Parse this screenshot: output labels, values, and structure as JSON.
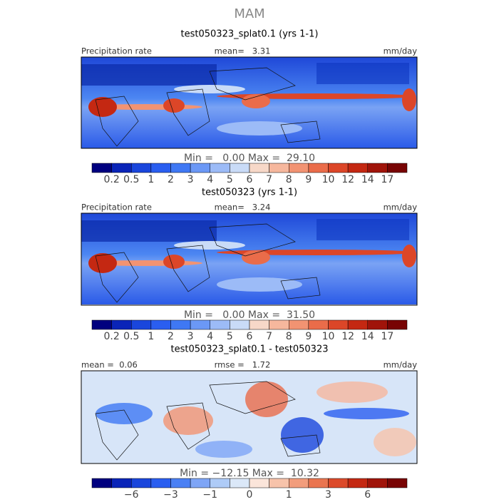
{
  "title": "MAM",
  "panels": [
    {
      "subtitle": "test050323_splat0.1 (yrs 1-1)",
      "left_label": "Precipitation rate",
      "center_label": "mean=   3.31",
      "right_label": "mm/day",
      "range_label": "Min =   0.00 Max =  29.10",
      "colorbar": {
        "colors": [
          "#00007f",
          "#0a24b8",
          "#1a46dc",
          "#2a5ef0",
          "#3f78f4",
          "#6b98f6",
          "#9cbbf7",
          "#c9dbf7",
          "#f7d8c8",
          "#f6b79d",
          "#f29372",
          "#ea6c4a",
          "#dc4628",
          "#c42812",
          "#a0140a",
          "#780404"
        ],
        "labels": [
          "0.2",
          "0.5",
          "1",
          "2",
          "3",
          "4",
          "5",
          "6",
          "7",
          "8",
          "9",
          "10",
          "12",
          "14",
          "17"
        ]
      }
    },
    {
      "subtitle": "test050323 (yrs 1-1)",
      "left_label": "Precipitation rate",
      "center_label": "mean=   3.24",
      "right_label": "mm/day",
      "range_label": "Min =   0.00 Max =  31.50",
      "colorbar": {
        "colors": [
          "#00007f",
          "#0a24b8",
          "#1a46dc",
          "#2a5ef0",
          "#3f78f4",
          "#6b98f6",
          "#9cbbf7",
          "#c9dbf7",
          "#f7d8c8",
          "#f6b79d",
          "#f29372",
          "#ea6c4a",
          "#dc4628",
          "#c42812",
          "#a0140a",
          "#780404"
        ],
        "labels": [
          "0.2",
          "0.5",
          "1",
          "2",
          "3",
          "4",
          "5",
          "6",
          "7",
          "8",
          "9",
          "10",
          "12",
          "14",
          "17"
        ]
      }
    },
    {
      "subtitle": "test050323_splat0.1 - test050323",
      "left_label": "mean =  0.06",
      "center_label": "rmse =   1.72",
      "right_label": "mm/day",
      "range_label": "Min = −12.15 Max =  10.32",
      "colorbar": {
        "colors": [
          "#00007f",
          "#0a24b8",
          "#1a46dc",
          "#2a5ef0",
          "#4a80f4",
          "#7ea5f6",
          "#aecbf7",
          "#dbe8f8",
          "#fbe5da",
          "#f7c3aa",
          "#f29d7c",
          "#ea7550",
          "#dc4a2a",
          "#c42812",
          "#a0140a",
          "#780404"
        ],
        "labels": [
          "−6",
          "−3",
          "−1",
          "0",
          "1",
          "3",
          "6"
        ]
      }
    }
  ]
}
